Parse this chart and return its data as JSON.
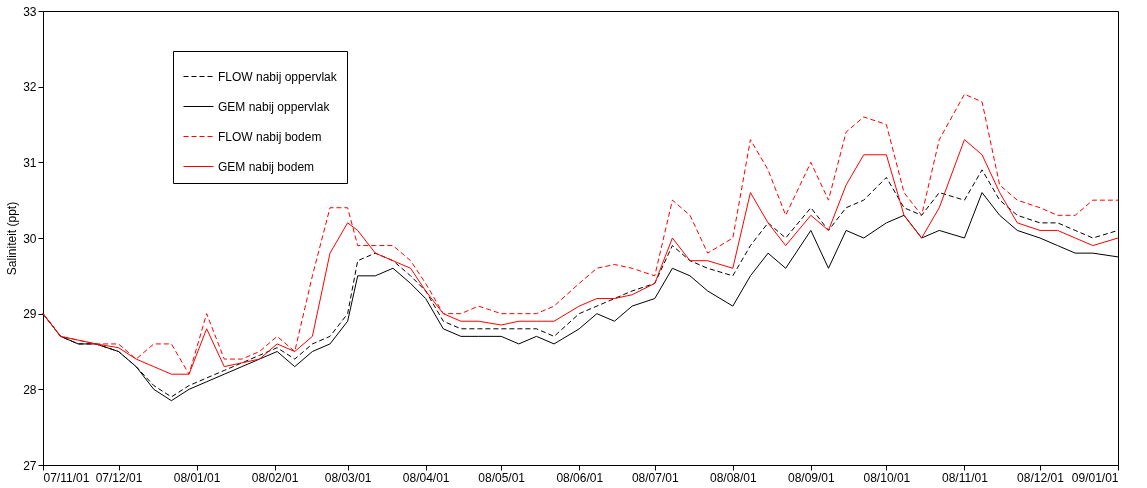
{
  "chart_data": {
    "type": "line",
    "ylabel": "Saliniteit (ppt)",
    "x": [
      "2007-11-01",
      "2007-11-08",
      "2007-11-15",
      "2007-11-22",
      "2007-12-01",
      "2007-12-08",
      "2007-12-15",
      "2007-12-22",
      "2007-12-29",
      "2008-01-05",
      "2008-01-12",
      "2008-01-19",
      "2008-01-26",
      "2008-02-02",
      "2008-02-09",
      "2008-02-16",
      "2008-02-23",
      "2008-03-01",
      "2008-03-05",
      "2008-03-12",
      "2008-03-19",
      "2008-03-26",
      "2008-04-01",
      "2008-04-08",
      "2008-04-15",
      "2008-04-22",
      "2008-05-01",
      "2008-05-08",
      "2008-05-15",
      "2008-05-22",
      "2008-06-01",
      "2008-06-08",
      "2008-06-15",
      "2008-06-22",
      "2008-07-01",
      "2008-07-08",
      "2008-07-15",
      "2008-07-22",
      "2008-08-01",
      "2008-08-08",
      "2008-08-15",
      "2008-08-22",
      "2008-09-01",
      "2008-09-08",
      "2008-09-15",
      "2008-09-22",
      "2008-10-01",
      "2008-10-08",
      "2008-10-15",
      "2008-10-22",
      "2008-11-01",
      "2008-11-08",
      "2008-11-15",
      "2008-11-22",
      "2008-12-01",
      "2008-12-08",
      "2008-12-15",
      "2008-12-22",
      "2009-01-01"
    ],
    "series": [
      {
        "name": "FLOW nabij oppervlak",
        "color": "#000000",
        "line_style": "dashed",
        "values": [
          29.0,
          28.7,
          28.6,
          28.6,
          28.5,
          28.3,
          28.05,
          27.9,
          28.05,
          28.15,
          28.25,
          28.35,
          28.45,
          28.55,
          28.4,
          28.6,
          28.7,
          29.0,
          29.7,
          29.8,
          29.7,
          29.5,
          29.3,
          28.9,
          28.8,
          28.8,
          28.8,
          28.8,
          28.8,
          28.7,
          29.0,
          29.1,
          29.2,
          29.3,
          29.4,
          29.9,
          29.7,
          29.6,
          29.5,
          29.9,
          30.2,
          30.0,
          30.4,
          30.1,
          30.4,
          30.5,
          30.8,
          30.4,
          30.3,
          30.6,
          30.5,
          30.9,
          30.5,
          30.3,
          30.2,
          30.2,
          30.1,
          30.0,
          30.1
        ]
      },
      {
        "name": "GEM nabij oppervlak",
        "color": "#000000",
        "line_style": "solid",
        "values": [
          29.0,
          28.7,
          28.6,
          28.6,
          28.5,
          28.3,
          28.0,
          27.85,
          28.0,
          28.1,
          28.2,
          28.3,
          28.4,
          28.5,
          28.3,
          28.5,
          28.6,
          28.9,
          29.5,
          29.5,
          29.6,
          29.4,
          29.2,
          28.8,
          28.7,
          28.7,
          28.7,
          28.6,
          28.7,
          28.6,
          28.8,
          29.0,
          28.9,
          29.1,
          29.2,
          29.6,
          29.5,
          29.3,
          29.1,
          29.5,
          29.8,
          29.6,
          30.1,
          29.6,
          30.1,
          30.0,
          30.2,
          30.3,
          30.0,
          30.1,
          30.0,
          30.6,
          30.3,
          30.1,
          30.0,
          29.9,
          29.8,
          29.8,
          29.75
        ]
      },
      {
        "name": "FLOW nabij bodem",
        "color": "#ff0000",
        "line_style": "dashed",
        "values": [
          29.0,
          28.7,
          28.65,
          28.6,
          28.6,
          28.4,
          28.6,
          28.6,
          28.2,
          29.0,
          28.4,
          28.4,
          28.5,
          28.7,
          28.5,
          29.5,
          30.4,
          30.4,
          29.9,
          29.9,
          29.9,
          29.7,
          29.4,
          29.0,
          29.0,
          29.1,
          29.0,
          29.0,
          29.0,
          29.1,
          29.4,
          29.6,
          29.65,
          29.6,
          29.5,
          30.5,
          30.3,
          29.8,
          30.0,
          31.3,
          30.9,
          30.3,
          31.0,
          30.5,
          31.4,
          31.6,
          31.5,
          30.6,
          30.3,
          31.3,
          31.9,
          31.8,
          30.7,
          30.5,
          30.4,
          30.3,
          30.3,
          30.5,
          30.5
        ]
      },
      {
        "name": "GEM nabij bodem",
        "color": "#ff0000",
        "line_style": "solid",
        "values": [
          29.0,
          28.7,
          28.65,
          28.6,
          28.55,
          28.4,
          28.3,
          28.2,
          28.2,
          28.8,
          28.3,
          28.35,
          28.4,
          28.6,
          28.5,
          28.7,
          29.8,
          30.2,
          30.1,
          29.8,
          29.7,
          29.6,
          29.3,
          29.0,
          28.9,
          28.9,
          28.85,
          28.9,
          28.9,
          28.9,
          29.1,
          29.2,
          29.2,
          29.25,
          29.4,
          30.0,
          29.7,
          29.7,
          29.6,
          30.6,
          30.2,
          29.9,
          30.3,
          30.1,
          30.7,
          31.1,
          31.1,
          30.3,
          30.0,
          30.4,
          31.3,
          31.1,
          30.6,
          30.2,
          30.1,
          30.1,
          30.0,
          29.9,
          30.0
        ]
      }
    ],
    "xlim": [
      "2007-11-01",
      "2009-01-01"
    ],
    "xticks": [
      {
        "value": "2007-11-01",
        "label": "07/11/01"
      },
      {
        "value": "2007-12-01",
        "label": "07/12/01"
      },
      {
        "value": "2008-01-01",
        "label": "08/01/01"
      },
      {
        "value": "2008-02-01",
        "label": "08/02/01"
      },
      {
        "value": "2008-03-01",
        "label": "08/03/01"
      },
      {
        "value": "2008-04-01",
        "label": "08/04/01"
      },
      {
        "value": "2008-05-01",
        "label": "08/05/01"
      },
      {
        "value": "2008-06-01",
        "label": "08/06/01"
      },
      {
        "value": "2008-07-01",
        "label": "08/07/01"
      },
      {
        "value": "2008-08-01",
        "label": "08/08/01"
      },
      {
        "value": "2008-09-01",
        "label": "08/09/01"
      },
      {
        "value": "2008-10-01",
        "label": "08/10/01"
      },
      {
        "value": "2008-11-01",
        "label": "08/11/01"
      },
      {
        "value": "2008-12-01",
        "label": "08/12/01"
      },
      {
        "value": "2009-01-01",
        "label": "09/01/01"
      }
    ],
    "ylim": [
      27,
      33
    ],
    "yticks": [
      27,
      28,
      29,
      30,
      31,
      32,
      33
    ],
    "grid": false,
    "legend": "top left",
    "marker": "none"
  }
}
